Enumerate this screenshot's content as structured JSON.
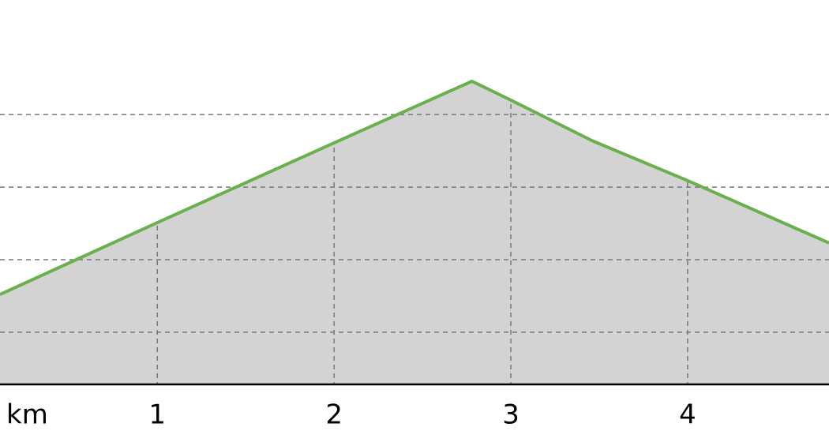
{
  "chart_data": {
    "type": "area",
    "xlabel": "km",
    "x": [
      0.11,
      1.0,
      2.0,
      2.78,
      3.0,
      3.46,
      4.0,
      4.8
    ],
    "values": [
      1.52,
      2.51,
      3.61,
      4.46,
      4.2,
      3.64,
      3.09,
      2.23
    ],
    "color": "#6ab04c",
    "fill": "#d3d3d3",
    "xlim": [
      0.11,
      4.8
    ],
    "xticks": [
      1,
      2,
      3,
      4
    ],
    "ylim": [
      0.28,
      5.58
    ],
    "yticks": [
      1,
      2,
      3,
      4
    ],
    "grid": true
  }
}
